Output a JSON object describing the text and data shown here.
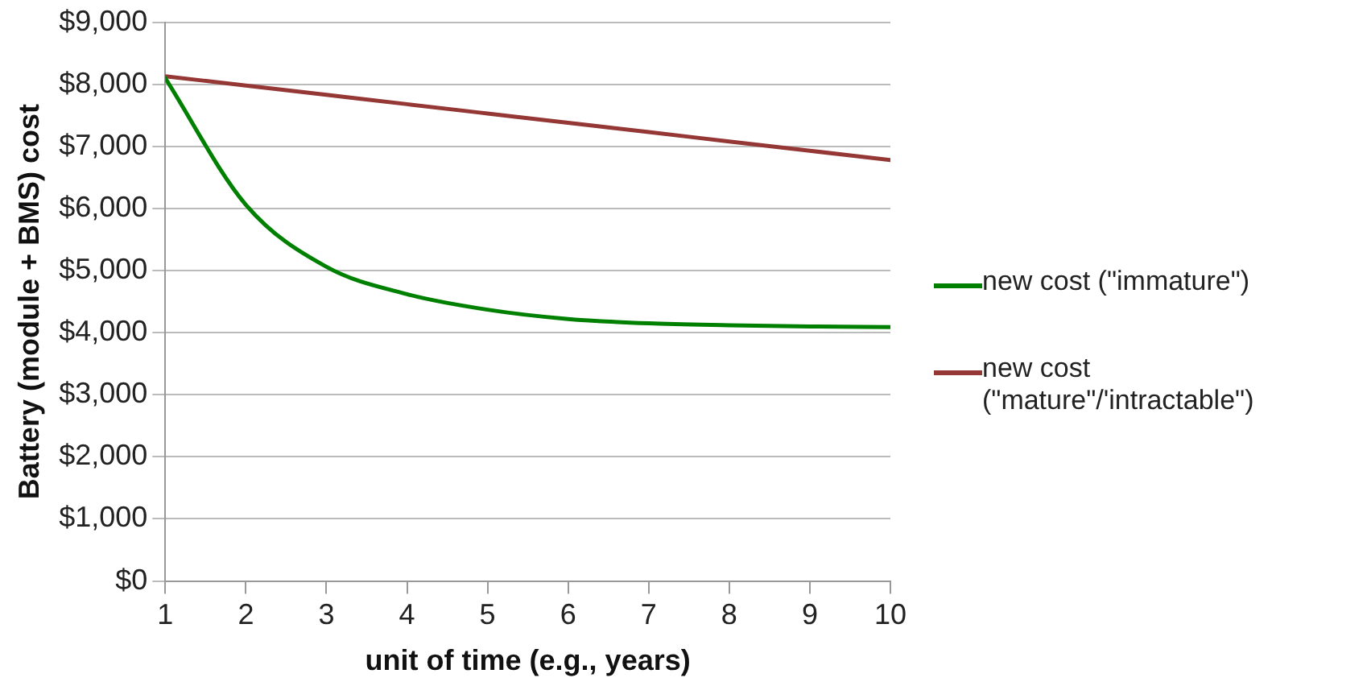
{
  "chart_data": {
    "type": "line",
    "xlabel": "unit of time (e.g., years)",
    "ylabel": "Battery (module + BMS) cost",
    "x": [
      1,
      2,
      3,
      4,
      5,
      6,
      7,
      8,
      9,
      10
    ],
    "series": [
      {
        "name": "new cost (\"immature\")",
        "color": "#008000",
        "values": [
          8100,
          6060,
          5060,
          4620,
          4370,
          4220,
          4150,
          4120,
          4100,
          4090
        ]
      },
      {
        "name": "new cost (\"mature\"/'intractable\")",
        "color": "#953735",
        "values": [
          8130,
          7980,
          7830,
          7680,
          7530,
          7380,
          7230,
          7080,
          6930,
          6780
        ]
      }
    ],
    "xlim": [
      1,
      10
    ],
    "xticks": [
      1,
      2,
      3,
      4,
      5,
      6,
      7,
      8,
      9,
      10
    ],
    "ylim": [
      0,
      9000
    ],
    "yticks": [
      {
        "value": 0,
        "label": "$0"
      },
      {
        "value": 1000,
        "label": "$1,000"
      },
      {
        "value": 2000,
        "label": "$2,000"
      },
      {
        "value": 3000,
        "label": "$3,000"
      },
      {
        "value": 4000,
        "label": "$4,000"
      },
      {
        "value": 5000,
        "label": "$5,000"
      },
      {
        "value": 6000,
        "label": "$6,000"
      },
      {
        "value": 7000,
        "label": "$7,000"
      },
      {
        "value": 8000,
        "label": "$8,000"
      },
      {
        "value": 9000,
        "label": "$9,000"
      }
    ],
    "grid": "y",
    "legend": "right",
    "marker": "none"
  }
}
